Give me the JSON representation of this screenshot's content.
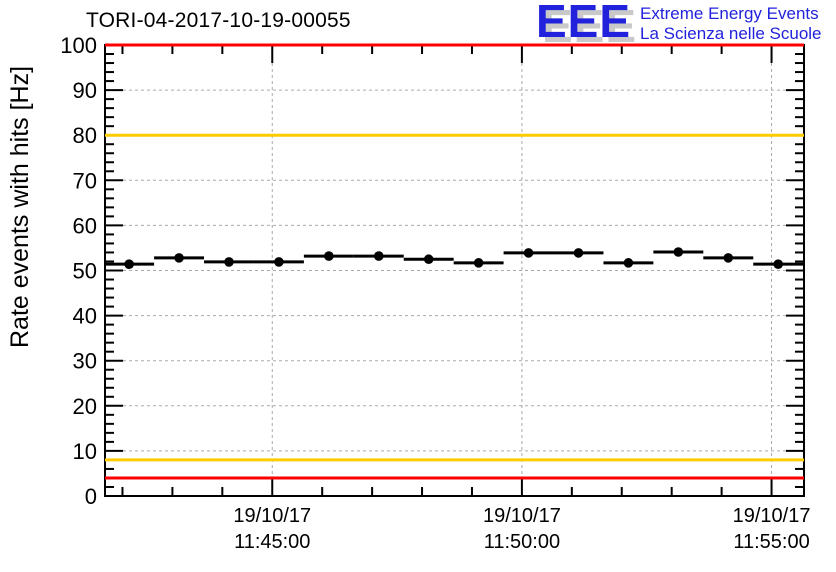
{
  "header": {
    "title": "TORI-04-2017-10-19-00055"
  },
  "logo": {
    "acronym": "EEE",
    "subtitle_line1": "Extreme Energy Events",
    "subtitle_line2": "La Scienza nelle Scuole",
    "text_color": "#2222dd",
    "shadow_color": "#c9c9c9"
  },
  "chart_data": {
    "type": "scatter",
    "title": "TORI-04-2017-10-19-00055",
    "xlabel": "",
    "ylabel": "Rate events with hits [Hz]",
    "ylim": [
      0,
      100
    ],
    "grid": true,
    "grid_color": "#aaaaaa",
    "y_major_tick_step": 10,
    "y_minor_tick_step": 2,
    "y_tick_labels": [
      "0",
      "10",
      "20",
      "30",
      "40",
      "50",
      "60",
      "70",
      "80",
      "90",
      "100"
    ],
    "x_start": "11:41:39",
    "x_end": "11:55:39",
    "x_minor_tick_step_seconds": 60,
    "x_major_ticks": [
      {
        "time": "11:45:00",
        "label_date": "19/10/17",
        "label_time": "11:45:00"
      },
      {
        "time": "11:50:00",
        "label_date": "19/10/17",
        "label_time": "11:50:00"
      },
      {
        "time": "11:55:00",
        "label_date": "19/10/17",
        "label_time": "11:55:00"
      }
    ],
    "threshold_lines": [
      {
        "value": 100,
        "color": "#ff0000"
      },
      {
        "value": 80,
        "color": "#ffcc00"
      },
      {
        "value": 8,
        "color": "#ffcc00"
      },
      {
        "value": 4,
        "color": "#ff0000"
      }
    ],
    "series": [
      {
        "name": "rate-events-with-hits",
        "marker": "filled-circle",
        "color": "#000000",
        "x_error_seconds": 30,
        "points": [
          {
            "time": "11:42:08",
            "value": 51.4
          },
          {
            "time": "11:43:08",
            "value": 52.8
          },
          {
            "time": "11:44:08",
            "value": 51.9
          },
          {
            "time": "11:45:08",
            "value": 51.9
          },
          {
            "time": "11:46:08",
            "value": 53.2
          },
          {
            "time": "11:47:08",
            "value": 53.2
          },
          {
            "time": "11:48:08",
            "value": 52.5
          },
          {
            "time": "11:49:08",
            "value": 51.7
          },
          {
            "time": "11:50:08",
            "value": 53.9
          },
          {
            "time": "11:51:08",
            "value": 53.9
          },
          {
            "time": "11:52:08",
            "value": 51.7
          },
          {
            "time": "11:53:08",
            "value": 54.1
          },
          {
            "time": "11:54:08",
            "value": 52.8
          },
          {
            "time": "11:55:08",
            "value": 51.4
          }
        ]
      }
    ]
  }
}
